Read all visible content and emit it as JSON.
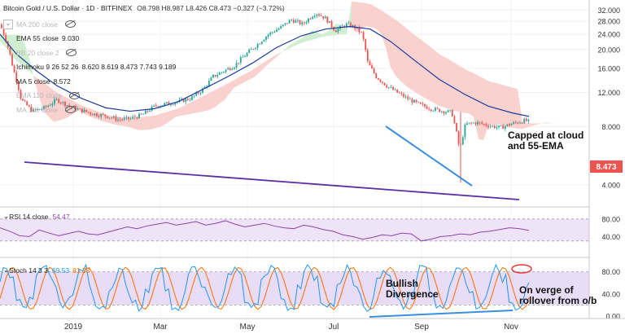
{
  "header": {
    "symbol": "Bitcoin Gold / U.S. Dollar · 1D · BITFINEX",
    "ohlc": "O8.798 H8.987 L8.426 C8.473 −0.327 (−3.72%)"
  },
  "legend": [
    {
      "label": "MA 200 close",
      "value": "",
      "faded": true,
      "eye": true
    },
    {
      "label": "EMA 55 close",
      "value": "9.030",
      "faded": false,
      "eye": false
    },
    {
      "label": "BB 20 close 2",
      "value": "",
      "faded": true,
      "eye": true
    },
    {
      "label": "Ichimoku 9 26 52 26",
      "value": "8.620  8.619  8.473  7.743  9.189",
      "faded": false,
      "eye": false
    },
    {
      "label": "MA 5 close",
      "value": "8.572",
      "faded": false,
      "eye": false
    },
    {
      "label": "EMA 110 close",
      "value": "",
      "faded": true,
      "eye": true
    },
    {
      "label": "MA 100 close",
      "value": "",
      "faded": true,
      "eye": true
    }
  ],
  "panes": {
    "rsi_label": "RSI 14 close",
    "rsi_value": "54.47",
    "stoch_label": "Stoch 14 3 3",
    "stoch_k": "69.53",
    "stoch_d": "81.33"
  },
  "price_tag": "8.473",
  "annotations": {
    "capped_line1": "Capped at cloud",
    "capped_line2": "and 55-EMA",
    "bullish_line1": "Bullish",
    "bullish_line2": "Divergence",
    "verge_line1": "On verge of",
    "verge_line2": "rollover from o/b"
  },
  "chart_data": {
    "type": "candlestick",
    "title": "Bitcoin Gold / U.S. Dollar · 1D · BITFINEX",
    "price_axis": {
      "scale": "log",
      "ticks": [
        32,
        28,
        24,
        20,
        16,
        12,
        8,
        4
      ],
      "range": [
        3.2,
        34
      ]
    },
    "x_ticks": [
      "2019",
      "Mar",
      "May",
      "Jul",
      "Sep",
      "Nov"
    ],
    "last_price": 8.473,
    "colors": {
      "up": "#26a69a",
      "down": "#ef5350",
      "ema55": "#1a3b9c",
      "trendline": "#5b2fa3",
      "channel": "#3a8fe0",
      "cloud_bull": "#c8ecc8",
      "cloud_bear": "#f8c9c6",
      "rsi": "#8e44ad",
      "stoch_k": "#2196f3",
      "stoch_d": "#ff6d00"
    },
    "price_path": [
      [
        0,
        27
      ],
      [
        8,
        22
      ],
      [
        16,
        16
      ],
      [
        26,
        11
      ],
      [
        40,
        9.6
      ],
      [
        55,
        10
      ],
      [
        70,
        11
      ],
      [
        85,
        10.2
      ],
      [
        100,
        9.7
      ],
      [
        115,
        9.3
      ],
      [
        130,
        9.1
      ],
      [
        145,
        8.7
      ],
      [
        160,
        8.8
      ],
      [
        175,
        9.2
      ],
      [
        190,
        10.2
      ],
      [
        205,
        10.5
      ],
      [
        220,
        10.8
      ],
      [
        235,
        11.2
      ],
      [
        250,
        12.5
      ],
      [
        262,
        14.5
      ],
      [
        275,
        15.5
      ],
      [
        288,
        16.5
      ],
      [
        300,
        18.5
      ],
      [
        315,
        21
      ],
      [
        330,
        24
      ],
      [
        345,
        26
      ],
      [
        358,
        28.5
      ],
      [
        372,
        27
      ],
      [
        388,
        31
      ],
      [
        400,
        29
      ],
      [
        412,
        25
      ],
      [
        425,
        27
      ],
      [
        437,
        26
      ],
      [
        445,
        24
      ],
      [
        452,
        17
      ],
      [
        462,
        14.5
      ],
      [
        475,
        13
      ],
      [
        488,
        12
      ],
      [
        500,
        11.2
      ],
      [
        515,
        10.4
      ],
      [
        530,
        9.9
      ],
      [
        545,
        9.6
      ],
      [
        555,
        9.5
      ],
      [
        565,
        6
      ],
      [
        572,
        8.2
      ],
      [
        585,
        8.4
      ],
      [
        600,
        8.1
      ],
      [
        615,
        7.9
      ],
      [
        630,
        8.3
      ],
      [
        645,
        8.6
      ],
      [
        650,
        8.47
      ]
    ],
    "ema55_path": [
      [
        0,
        24
      ],
      [
        20,
        19
      ],
      [
        45,
        15.5
      ],
      [
        70,
        13
      ],
      [
        100,
        11.2
      ],
      [
        130,
        10
      ],
      [
        160,
        9.6
      ],
      [
        190,
        9.9
      ],
      [
        220,
        10.8
      ],
      [
        250,
        12.5
      ],
      [
        280,
        14.5
      ],
      [
        310,
        17
      ],
      [
        340,
        20.5
      ],
      [
        370,
        23.5
      ],
      [
        400,
        25.5
      ],
      [
        430,
        26.3
      ],
      [
        455,
        25.5
      ],
      [
        480,
        22
      ],
      [
        510,
        17.5
      ],
      [
        540,
        14
      ],
      [
        570,
        11.8
      ],
      [
        600,
        10.2
      ],
      [
        630,
        9.4
      ],
      [
        650,
        9.03
      ]
    ],
    "rsi": {
      "range": [
        0,
        100
      ],
      "ticks": [
        80,
        40
      ],
      "last": 54.47,
      "values": [
        60,
        52,
        42,
        40,
        55,
        48,
        42,
        47,
        52,
        46,
        44,
        50,
        56,
        62,
        58,
        64,
        68,
        72,
        66,
        70,
        74,
        66,
        70,
        76,
        68,
        62,
        66,
        70,
        64,
        60,
        58,
        66,
        62,
        56,
        52,
        44,
        40,
        34,
        38,
        44,
        42,
        48,
        46,
        30,
        34,
        40,
        42,
        46,
        44,
        50,
        52,
        56,
        60,
        58,
        54
      ]
    },
    "stoch": {
      "range": [
        0,
        100
      ],
      "ticks": [
        80,
        40,
        0
      ],
      "k_last": 69.53,
      "d_last": 81.33
    },
    "series": [
      {
        "name": "EMA 55 close",
        "last": 9.03
      },
      {
        "name": "MA 5 close",
        "last": 8.572
      }
    ]
  }
}
